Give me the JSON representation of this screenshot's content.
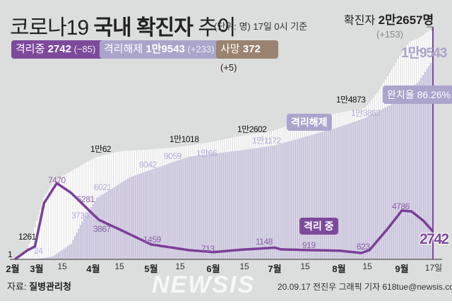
{
  "header": {
    "title_plain1": "코로나19 ",
    "title_bold": "국내 확진자",
    "title_plain2": " 추이",
    "unit_note": "(단위: 명) 17일 0시 기준",
    "total_label": "확진자 ",
    "total_value": "2만2657명",
    "total_delta": "(+153)"
  },
  "tags": {
    "isolation": {
      "label": "격리중 ",
      "value": "2742",
      "delta": " (−85)",
      "color": "#7d4a9b"
    },
    "released": {
      "label": "격리해제 ",
      "value": "1만9543",
      "delta": " (+233)",
      "color": "#aba4cb"
    },
    "deaths": {
      "label": "사망 ",
      "value": "372",
      "delta": " (+5)",
      "color": "#9a8370"
    }
  },
  "chart_data": {
    "type": "bar",
    "x_axis": {
      "tick_labels": [
        "2월",
        "3월",
        "15",
        "4월",
        "15",
        "5월",
        "15",
        "6월",
        "15",
        "7월",
        "15",
        "8월",
        "15",
        "9월",
        "17일"
      ]
    },
    "series": [
      {
        "name": "확진자",
        "kind": "bar",
        "color": "#ffffff",
        "points": [
          [
            "02-18",
            31
          ],
          [
            "02-25",
            977
          ],
          [
            "02-29",
            3150
          ],
          [
            "03-05",
            6088
          ],
          [
            "03-10",
            7513
          ],
          [
            "03-15",
            8162
          ],
          [
            "03-20",
            8652
          ],
          [
            "03-31",
            9786
          ],
          [
            "04-03",
            10062
          ],
          [
            "04-15",
            10591
          ],
          [
            "04-30",
            10774
          ],
          [
            "05-15",
            11018
          ],
          [
            "05-31",
            11503
          ],
          [
            "06-15",
            12121
          ],
          [
            "06-30",
            12602
          ],
          [
            "07-15",
            13612
          ],
          [
            "07-31",
            14336
          ],
          [
            "08-14",
            14873
          ],
          [
            "08-20",
            16346
          ],
          [
            "08-25",
            17945
          ],
          [
            "08-31",
            19947
          ],
          [
            "09-05",
            21296
          ],
          [
            "09-10",
            21743
          ],
          [
            "09-17",
            22657
          ]
        ]
      },
      {
        "name": "격리해제",
        "kind": "bar",
        "color": "#c7c1df",
        "points": [
          [
            "02-18",
            12
          ],
          [
            "03-01",
            24
          ],
          [
            "03-10",
            288
          ],
          [
            "03-20",
            1540
          ],
          [
            "03-26",
            3730
          ],
          [
            "04-03",
            6021
          ],
          [
            "04-20",
            8042
          ],
          [
            "05-05",
            9059
          ],
          [
            "05-20",
            10066
          ],
          [
            "06-15",
            10700
          ],
          [
            "07-01",
            11172
          ],
          [
            "07-31",
            12900
          ],
          [
            "08-14",
            13863
          ],
          [
            "08-31",
            15600
          ],
          [
            "09-10",
            17500
          ],
          [
            "09-17",
            19543
          ]
        ]
      },
      {
        "name": "격리 중",
        "kind": "line",
        "color": "#7b3f98",
        "points": [
          [
            "02-18",
            1
          ],
          [
            "02-25",
            900
          ],
          [
            "02-29",
            1261
          ],
          [
            "03-05",
            5500
          ],
          [
            "03-12",
            7470
          ],
          [
            "03-20",
            6500
          ],
          [
            "03-27",
            5281
          ],
          [
            "04-04",
            3867
          ],
          [
            "04-15",
            2900
          ],
          [
            "05-01",
            1459
          ],
          [
            "05-20",
            900
          ],
          [
            "06-01",
            713
          ],
          [
            "06-15",
            950
          ],
          [
            "07-01",
            1148
          ],
          [
            "07-04",
            980
          ],
          [
            "07-15",
            919
          ],
          [
            "08-01",
            850
          ],
          [
            "08-12",
            623
          ],
          [
            "08-16",
            900
          ],
          [
            "08-25",
            3000
          ],
          [
            "09-01",
            4786
          ],
          [
            "09-06",
            4700
          ],
          [
            "09-12",
            3800
          ],
          [
            "09-17",
            2742
          ]
        ]
      }
    ],
    "ylim": [
      0,
      22657
    ],
    "annotations": {
      "confirmed": [
        "1만62",
        "1만1018",
        "1만2602",
        "1만4873"
      ],
      "released": [
        "24",
        "3730",
        "6021",
        "8042",
        "9059",
        "1만66",
        "1만1172",
        "1만3863"
      ],
      "released_latest": "1만9543",
      "recovery_rate": "완치율 86.26%",
      "released_tag": "격리해제",
      "isolation": [
        "1",
        "1261",
        "7470",
        "5281",
        "3867",
        "1459",
        "713",
        "1148",
        "919",
        "623",
        "4786"
      ],
      "isolation_tag": "격리 중",
      "isolation_latest": "2742"
    }
  },
  "footer": {
    "source_label": "자료: ",
    "source_value": "질병관리청",
    "credit": "20.09.17 전진우 그래픽 기자 618tue@newsis.com",
    "watermark": "NEWSIS"
  }
}
